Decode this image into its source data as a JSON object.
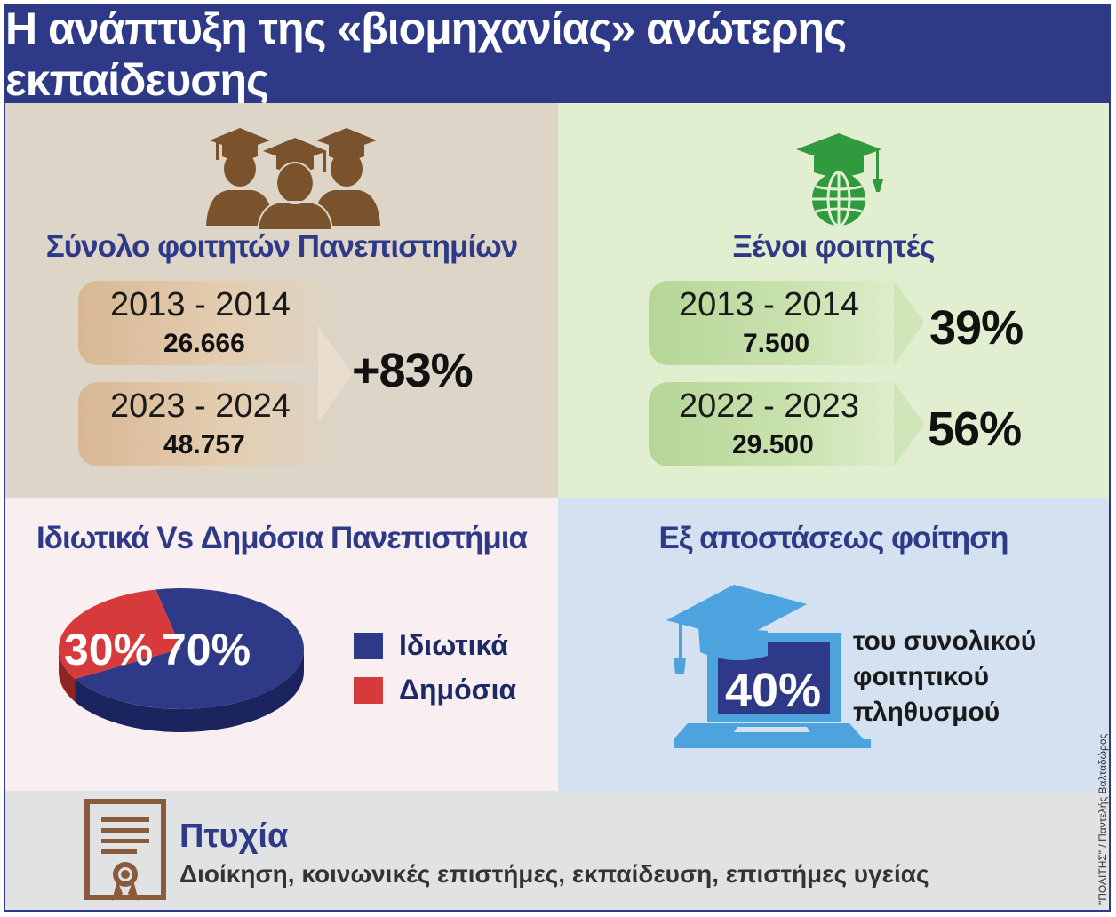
{
  "title": "Η ανάπτυξη της «βιομηχανίας» ανώτερης εκπαίδευσης",
  "students_total": {
    "title": "Σύνολο φοιτητών Πανεπιστημίων",
    "rows": [
      {
        "year": "2013 - 2014",
        "value": "26.666"
      },
      {
        "year": "2023 - 2024",
        "value": "48.757"
      }
    ],
    "change": "+83%"
  },
  "foreign_students": {
    "title": "Ξένοι φοιτητές",
    "rows": [
      {
        "year": "2013 - 2014",
        "value": "7.500",
        "percent": "39%"
      },
      {
        "year": "2022 - 2023",
        "value": "29.500",
        "percent": "56%"
      }
    ]
  },
  "private_public": {
    "title": "Ιδιωτικά Vs Δημόσια Πανεπιστήμια",
    "legend": [
      {
        "label": "Ιδιωτικά",
        "color": "#2e3a87"
      },
      {
        "label": "Δημόσια",
        "color": "#d73a3a"
      }
    ]
  },
  "distance": {
    "title": "Εξ αποστάσεως φοίτηση",
    "percent": "40%",
    "text_lines": [
      "του συνολικού",
      "φοιτητικού",
      "πληθυσμού"
    ]
  },
  "degrees": {
    "title": "Πτυχία",
    "fields": "Διοίκηση, κοινωνικές επιστήμες, εκπαίδευση, επιστήμες υγείας"
  },
  "credit": "\"ΠΟΛΙΤΗΣ\" / Παντελής Βαλταδώρος",
  "colors": {
    "header": "#2e3a87",
    "brown_icon": "#7a532c",
    "green_icon": "#2f9a3e",
    "laptop": "#4da3dd",
    "degree_icon": "#8a5a3c"
  },
  "chart_data": {
    "type": "pie",
    "categories": [
      "Ιδιωτικά",
      "Δημόσια"
    ],
    "values": [
      70,
      30
    ],
    "value_labels": [
      "70%",
      "30%"
    ],
    "colors": [
      "#2e3a87",
      "#d73a3a"
    ],
    "title": "Ιδιωτικά Vs Δημόσια Πανεπιστήμια",
    "legend": "right"
  }
}
